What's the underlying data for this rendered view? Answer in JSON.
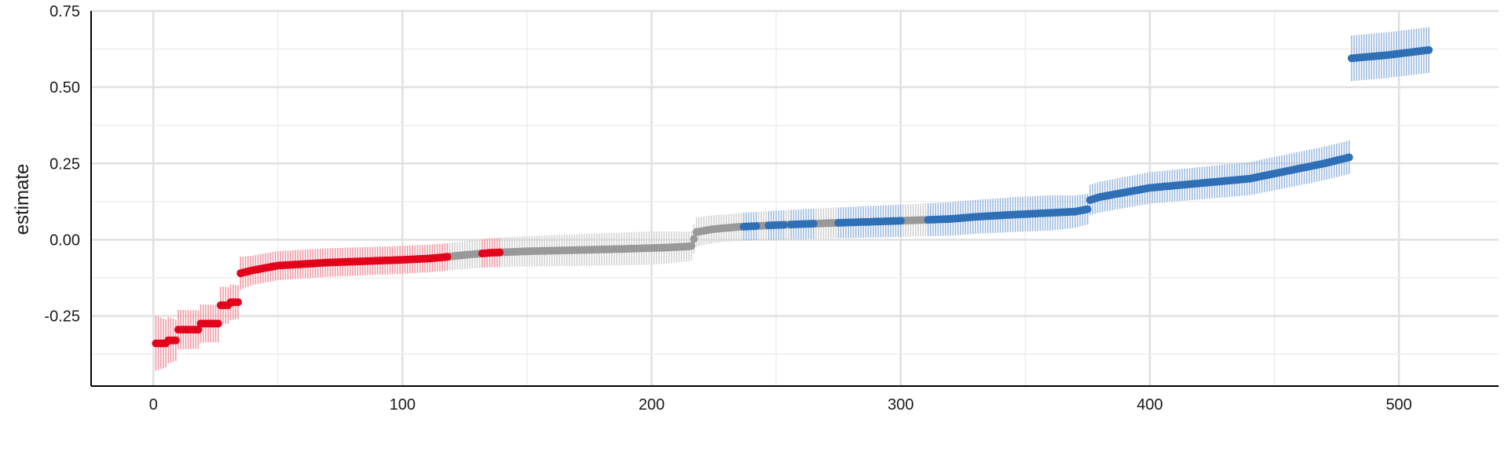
{
  "chart_data": {
    "type": "scatter",
    "title": "",
    "xlabel": "",
    "ylabel": "estimate",
    "xlim": [
      -25,
      540
    ],
    "ylim": [
      -0.48,
      0.75
    ],
    "x_ticks": [
      0,
      100,
      200,
      300,
      400,
      500
    ],
    "x_tick_labels": [
      "0",
      "100",
      "200",
      "300",
      "400",
      "500"
    ],
    "y_ticks": [
      -0.25,
      0.0,
      0.25,
      0.5,
      0.75
    ],
    "y_tick_labels": [
      "-0.25",
      "0.00",
      "0.25",
      "0.50",
      "0.75"
    ],
    "grid": true,
    "legend": "none",
    "colors": {
      "negative": "#e3001b",
      "neutral": "#999999",
      "positive": "#2f6fb5"
    },
    "error_band_colors": {
      "negative": "#f19aa5",
      "neutral": "#d3d3d3",
      "positive": "#9dbbdf"
    },
    "n_points": 512,
    "estimate_profile": {
      "rank": [
        1,
        5,
        6,
        9,
        10,
        18,
        19,
        26,
        27,
        30,
        31,
        34,
        35,
        40,
        50,
        60,
        70,
        80,
        90,
        100,
        110,
        116,
        125,
        135,
        150,
        170,
        190,
        205,
        215,
        216,
        218,
        225,
        235,
        250,
        270,
        300,
        320,
        330,
        345,
        360,
        370,
        375,
        376,
        380,
        390,
        400,
        420,
        440,
        455,
        470,
        480,
        481,
        495,
        512
      ],
      "estimate": [
        -0.34,
        -0.34,
        -0.33,
        -0.33,
        -0.295,
        -0.295,
        -0.275,
        -0.275,
        -0.215,
        -0.215,
        -0.205,
        -0.205,
        -0.11,
        -0.1,
        -0.085,
        -0.08,
        -0.075,
        -0.072,
        -0.069,
        -0.066,
        -0.062,
        -0.058,
        -0.05,
        -0.043,
        -0.038,
        -0.034,
        -0.03,
        -0.026,
        -0.022,
        -0.02,
        0.025,
        0.035,
        0.042,
        0.048,
        0.054,
        0.062,
        0.068,
        0.075,
        0.082,
        0.088,
        0.092,
        0.1,
        0.13,
        0.14,
        0.155,
        0.17,
        0.185,
        0.2,
        0.225,
        0.25,
        0.27,
        0.595,
        0.605,
        0.622
      ]
    },
    "ci_halfwidth_profile": {
      "rank": [
        1,
        10,
        30,
        40,
        120,
        150,
        200,
        216,
        230,
        270,
        320,
        360,
        376,
        450,
        480,
        481,
        512
      ],
      "halfwidth": [
        0.09,
        0.065,
        0.06,
        0.048,
        0.045,
        0.05,
        0.055,
        0.048,
        0.045,
        0.05,
        0.055,
        0.058,
        0.05,
        0.055,
        0.055,
        0.075,
        0.075
      ]
    },
    "category_segments": [
      {
        "from": 1,
        "to": 118,
        "category": "negative"
      },
      {
        "from": 119,
        "to": 131,
        "category": "neutral"
      },
      {
        "from": 132,
        "to": 139,
        "category": "negative"
      },
      {
        "from": 140,
        "to": 236,
        "category": "neutral"
      },
      {
        "from": 237,
        "to": 242,
        "category": "positive"
      },
      {
        "from": 243,
        "to": 246,
        "category": "neutral"
      },
      {
        "from": 247,
        "to": 253,
        "category": "positive"
      },
      {
        "from": 254,
        "to": 255,
        "category": "neutral"
      },
      {
        "from": 256,
        "to": 265,
        "category": "positive"
      },
      {
        "from": 266,
        "to": 274,
        "category": "neutral"
      },
      {
        "from": 275,
        "to": 300,
        "category": "positive"
      },
      {
        "from": 301,
        "to": 310,
        "category": "neutral"
      },
      {
        "from": 311,
        "to": 512,
        "category": "positive"
      }
    ]
  }
}
